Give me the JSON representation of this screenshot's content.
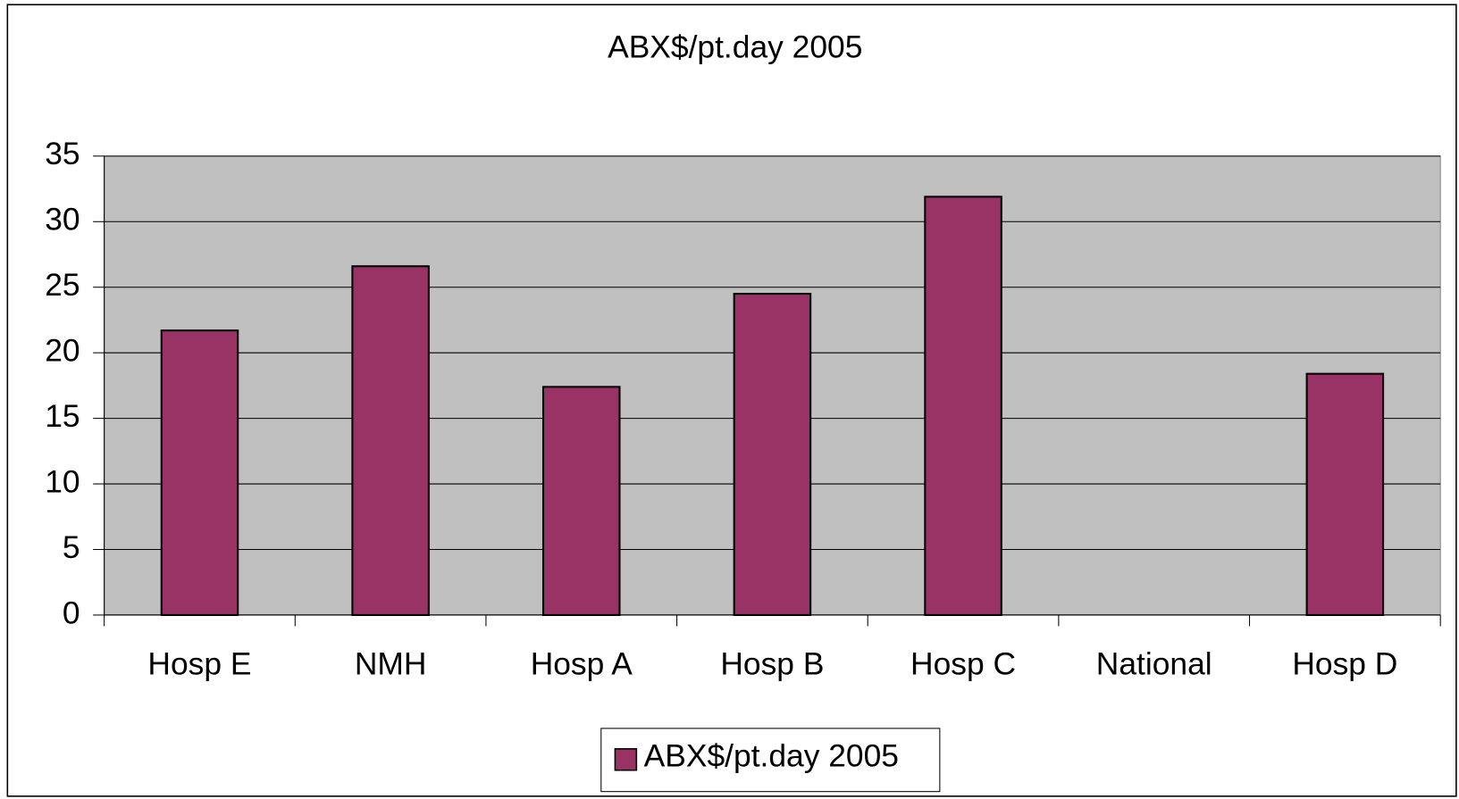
{
  "chart_data": {
    "type": "bar",
    "title": "ABX$/pt.day 2005",
    "categories": [
      "Hosp E",
      "NMH",
      "Hosp A",
      "Hosp B",
      "Hosp C",
      "National",
      "Hosp D"
    ],
    "series": [
      {
        "name": "ABX$/pt.day 2005",
        "color": "#993366",
        "values": [
          21.7,
          26.6,
          17.4,
          24.5,
          31.9,
          null,
          18.4
        ]
      }
    ],
    "ylim": [
      0,
      35
    ],
    "yticks": [
      0,
      5,
      10,
      15,
      20,
      25,
      30,
      35
    ],
    "grid": true,
    "legend": "bottom"
  }
}
